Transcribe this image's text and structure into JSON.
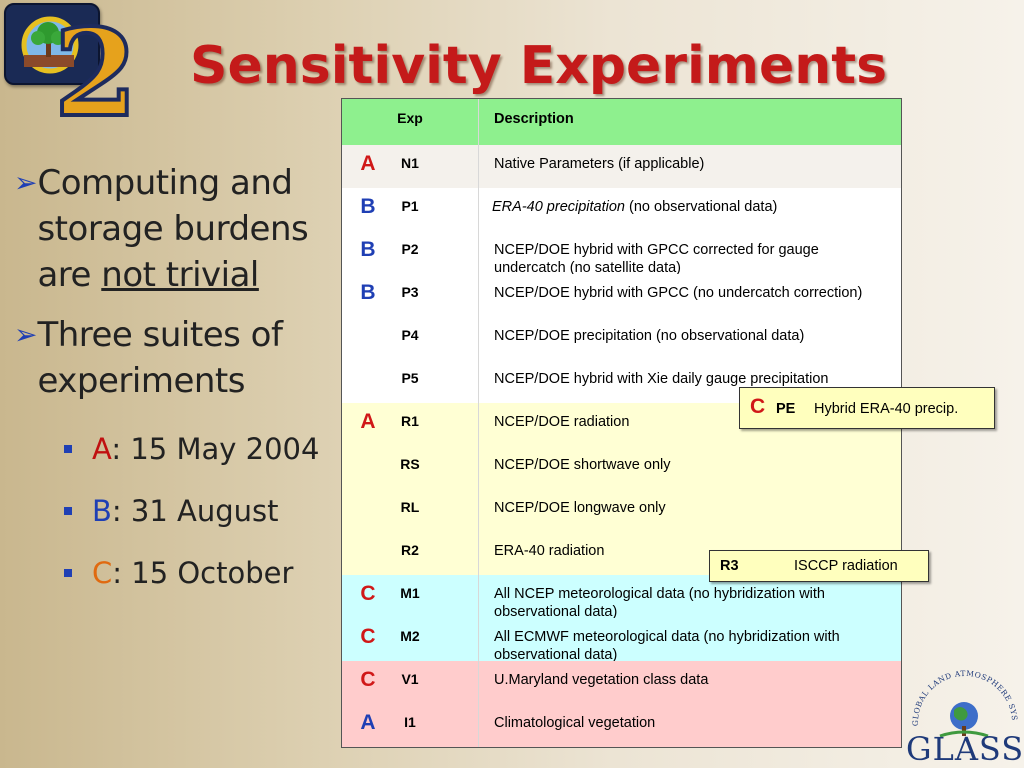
{
  "title": "Sensitivity Experiments",
  "logo": {
    "number": "2"
  },
  "bullets": [
    {
      "pre": "Computing and storage burdens are ",
      "underlined": "not trivial"
    },
    {
      "pre": "Three suites of experiments",
      "underlined": ""
    }
  ],
  "sub_bullets": [
    {
      "letter": "A",
      "text": ": 15 May 2004"
    },
    {
      "letter": "B",
      "text": ": 31 August"
    },
    {
      "letter": "C",
      "text": ": 15 October"
    }
  ],
  "table": {
    "headers": {
      "exp": "Exp",
      "description": "Description"
    },
    "rows": [
      {
        "suite": "A",
        "exp": "N1",
        "desc": "Native Parameters (if applicable)",
        "italic": ""
      },
      {
        "suite": "B",
        "exp": "P1",
        "desc": " (no observational data)",
        "italic": "ERA-40 precipitation"
      },
      {
        "suite": "B",
        "exp": "P2",
        "desc": "NCEP/DOE hybrid with GPCC corrected for gauge undercatch (no satellite data)",
        "italic": ""
      },
      {
        "suite": "B",
        "exp": "P3",
        "desc": "NCEP/DOE hybrid with GPCC (no undercatch correction)",
        "italic": ""
      },
      {
        "suite": "",
        "exp": "P4",
        "desc": "NCEP/DOE precipitation (no observational data)",
        "italic": ""
      },
      {
        "suite": "",
        "exp": "P5",
        "desc": "NCEP/DOE hybrid with Xie daily gauge precipitation",
        "italic": ""
      },
      {
        "suite": "A",
        "exp": "R1",
        "desc": "NCEP/DOE radiation",
        "italic": ""
      },
      {
        "suite": "",
        "exp": "RS",
        "desc": "NCEP/DOE shortwave only",
        "italic": ""
      },
      {
        "suite": "",
        "exp": "RL",
        "desc": "NCEP/DOE longwave only",
        "italic": ""
      },
      {
        "suite": "",
        "exp": "R2",
        "desc": "ERA-40 radiation",
        "italic": ""
      },
      {
        "suite": "C",
        "exp": "M1",
        "desc": "All NCEP meteorological data (no hybridization with observational data)",
        "italic": ""
      },
      {
        "suite": "C",
        "exp": "M2",
        "desc": "All ECMWF meteorological data (no hybridization with observational data)",
        "italic": ""
      },
      {
        "suite": "C",
        "exp": "V1",
        "desc": "U.Maryland vegetation class data",
        "italic": ""
      },
      {
        "suite": "A",
        "exp": "I1",
        "desc": "Climatological vegetation",
        "italic": ""
      }
    ]
  },
  "callouts": {
    "pe": {
      "suite": "C",
      "exp": "PE",
      "desc": "Hybrid ERA-40 precip."
    },
    "r3": {
      "exp": "R3",
      "desc": "ISCCP radiation"
    }
  },
  "glass_logo": {
    "arc_text": "GLOBAL LAND ATMOSPHERE SYSTEM STUDY",
    "word": "GLASS"
  },
  "colors": {
    "title": "#c41a1a",
    "suite_a": "#c01010",
    "suite_b": "#1f3fb4",
    "suite_c": "#e06a10",
    "header_bg": "#8ef08e",
    "yellow_bg": "#ffffd4",
    "cyan_bg": "#ccffff",
    "pink_bg": "#ffcccc"
  }
}
